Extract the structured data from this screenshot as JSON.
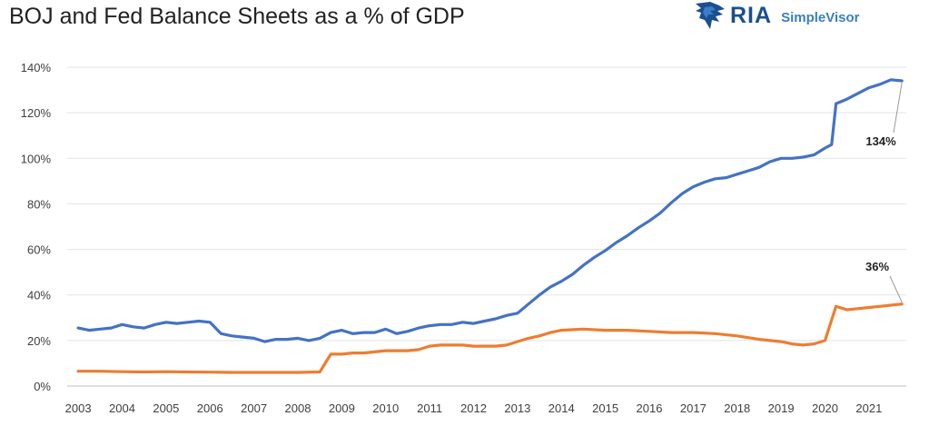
{
  "logo": {
    "name": "RIA",
    "product": "SimpleVisor",
    "brand_color": "#1b4f8f",
    "accent_color": "#3b7dc8"
  },
  "chart_data": {
    "type": "line",
    "title": "BOJ and Fed Balance Sheets as a % of GDP",
    "xlabel": "",
    "ylabel": "",
    "ylim": [
      0,
      140
    ],
    "xlim": [
      2003,
      2021.75
    ],
    "y_ticks": [
      "0%",
      "20%",
      "40%",
      "60%",
      "80%",
      "100%",
      "120%",
      "140%"
    ],
    "x_ticks": [
      "2003",
      "2004",
      "2005",
      "2006",
      "2007",
      "2008",
      "2009",
      "2010",
      "2011",
      "2012",
      "2013",
      "2014",
      "2015",
      "2016",
      "2017",
      "2018",
      "2019",
      "2020",
      "2021"
    ],
    "grid": true,
    "legend": "none",
    "series": [
      {
        "color": "#4472c4",
        "end_label": "134%",
        "points": [
          [
            2003.0,
            25.5
          ],
          [
            2003.25,
            24.5
          ],
          [
            2003.5,
            25
          ],
          [
            2003.75,
            25.5
          ],
          [
            2004.0,
            27
          ],
          [
            2004.25,
            26
          ],
          [
            2004.5,
            25.5
          ],
          [
            2004.75,
            27
          ],
          [
            2005.0,
            28
          ],
          [
            2005.25,
            27.5
          ],
          [
            2005.5,
            28
          ],
          [
            2005.75,
            28.5
          ],
          [
            2006.0,
            28
          ],
          [
            2006.25,
            23
          ],
          [
            2006.5,
            22
          ],
          [
            2006.75,
            21.5
          ],
          [
            2007.0,
            21
          ],
          [
            2007.25,
            19.5
          ],
          [
            2007.5,
            20.5
          ],
          [
            2007.75,
            20.5
          ],
          [
            2008.0,
            21
          ],
          [
            2008.25,
            20
          ],
          [
            2008.5,
            21
          ],
          [
            2008.75,
            23.5
          ],
          [
            2009.0,
            24.5
          ],
          [
            2009.25,
            23
          ],
          [
            2009.5,
            23.5
          ],
          [
            2009.75,
            23.5
          ],
          [
            2010.0,
            25
          ],
          [
            2010.25,
            23
          ],
          [
            2010.5,
            24
          ],
          [
            2010.75,
            25.5
          ],
          [
            2011.0,
            26.5
          ],
          [
            2011.25,
            27
          ],
          [
            2011.5,
            27
          ],
          [
            2011.75,
            28
          ],
          [
            2012.0,
            27.5
          ],
          [
            2012.25,
            28.5
          ],
          [
            2012.5,
            29.5
          ],
          [
            2012.75,
            31
          ],
          [
            2013.0,
            32
          ],
          [
            2013.25,
            36
          ],
          [
            2013.5,
            40
          ],
          [
            2013.75,
            43.5
          ],
          [
            2014.0,
            46
          ],
          [
            2014.25,
            49
          ],
          [
            2014.5,
            53
          ],
          [
            2014.75,
            56.5
          ],
          [
            2015.0,
            59.5
          ],
          [
            2015.25,
            63
          ],
          [
            2015.5,
            66
          ],
          [
            2015.75,
            69.5
          ],
          [
            2016.0,
            72.5
          ],
          [
            2016.25,
            76
          ],
          [
            2016.5,
            80.5
          ],
          [
            2016.75,
            84.5
          ],
          [
            2017.0,
            87.5
          ],
          [
            2017.25,
            89.5
          ],
          [
            2017.5,
            91
          ],
          [
            2017.75,
            91.5
          ],
          [
            2018.0,
            93
          ],
          [
            2018.25,
            94.5
          ],
          [
            2018.5,
            96
          ],
          [
            2018.75,
            98.5
          ],
          [
            2019.0,
            100
          ],
          [
            2019.25,
            100
          ],
          [
            2019.5,
            100.5
          ],
          [
            2019.75,
            101.5
          ],
          [
            2020.0,
            104.5
          ],
          [
            2020.15,
            106
          ],
          [
            2020.25,
            124
          ],
          [
            2020.5,
            126
          ],
          [
            2020.75,
            128.5
          ],
          [
            2021.0,
            131
          ],
          [
            2021.25,
            132.5
          ],
          [
            2021.5,
            134.5
          ],
          [
            2021.75,
            134
          ]
        ]
      },
      {
        "color": "#ed7d31",
        "end_label": "36%",
        "points": [
          [
            2003.0,
            6.5
          ],
          [
            2003.5,
            6.5
          ],
          [
            2004.0,
            6.3
          ],
          [
            2004.5,
            6.2
          ],
          [
            2005.0,
            6.3
          ],
          [
            2005.5,
            6.2
          ],
          [
            2006.0,
            6.1
          ],
          [
            2006.5,
            6
          ],
          [
            2007.0,
            6
          ],
          [
            2007.5,
            6
          ],
          [
            2008.0,
            6
          ],
          [
            2008.5,
            6.2
          ],
          [
            2008.75,
            14
          ],
          [
            2009.0,
            14
          ],
          [
            2009.25,
            14.5
          ],
          [
            2009.5,
            14.5
          ],
          [
            2009.75,
            15
          ],
          [
            2010.0,
            15.5
          ],
          [
            2010.5,
            15.5
          ],
          [
            2010.75,
            16
          ],
          [
            2011.0,
            17.5
          ],
          [
            2011.25,
            18
          ],
          [
            2011.5,
            18
          ],
          [
            2011.75,
            18
          ],
          [
            2012.0,
            17.5
          ],
          [
            2012.5,
            17.5
          ],
          [
            2012.75,
            18
          ],
          [
            2013.0,
            19.5
          ],
          [
            2013.25,
            21
          ],
          [
            2013.5,
            22
          ],
          [
            2013.75,
            23.5
          ],
          [
            2014.0,
            24.5
          ],
          [
            2014.5,
            25
          ],
          [
            2015.0,
            24.5
          ],
          [
            2015.5,
            24.5
          ],
          [
            2016.0,
            24
          ],
          [
            2016.5,
            23.5
          ],
          [
            2017.0,
            23.5
          ],
          [
            2017.5,
            23
          ],
          [
            2018.0,
            22
          ],
          [
            2018.5,
            20.5
          ],
          [
            2019.0,
            19.5
          ],
          [
            2019.25,
            18.5
          ],
          [
            2019.5,
            18
          ],
          [
            2019.75,
            18.5
          ],
          [
            2020.0,
            20
          ],
          [
            2020.25,
            35
          ],
          [
            2020.5,
            33.5
          ],
          [
            2020.75,
            34
          ],
          [
            2021.0,
            34.5
          ],
          [
            2021.25,
            35
          ],
          [
            2021.5,
            35.5
          ],
          [
            2021.75,
            36
          ]
        ]
      }
    ]
  }
}
